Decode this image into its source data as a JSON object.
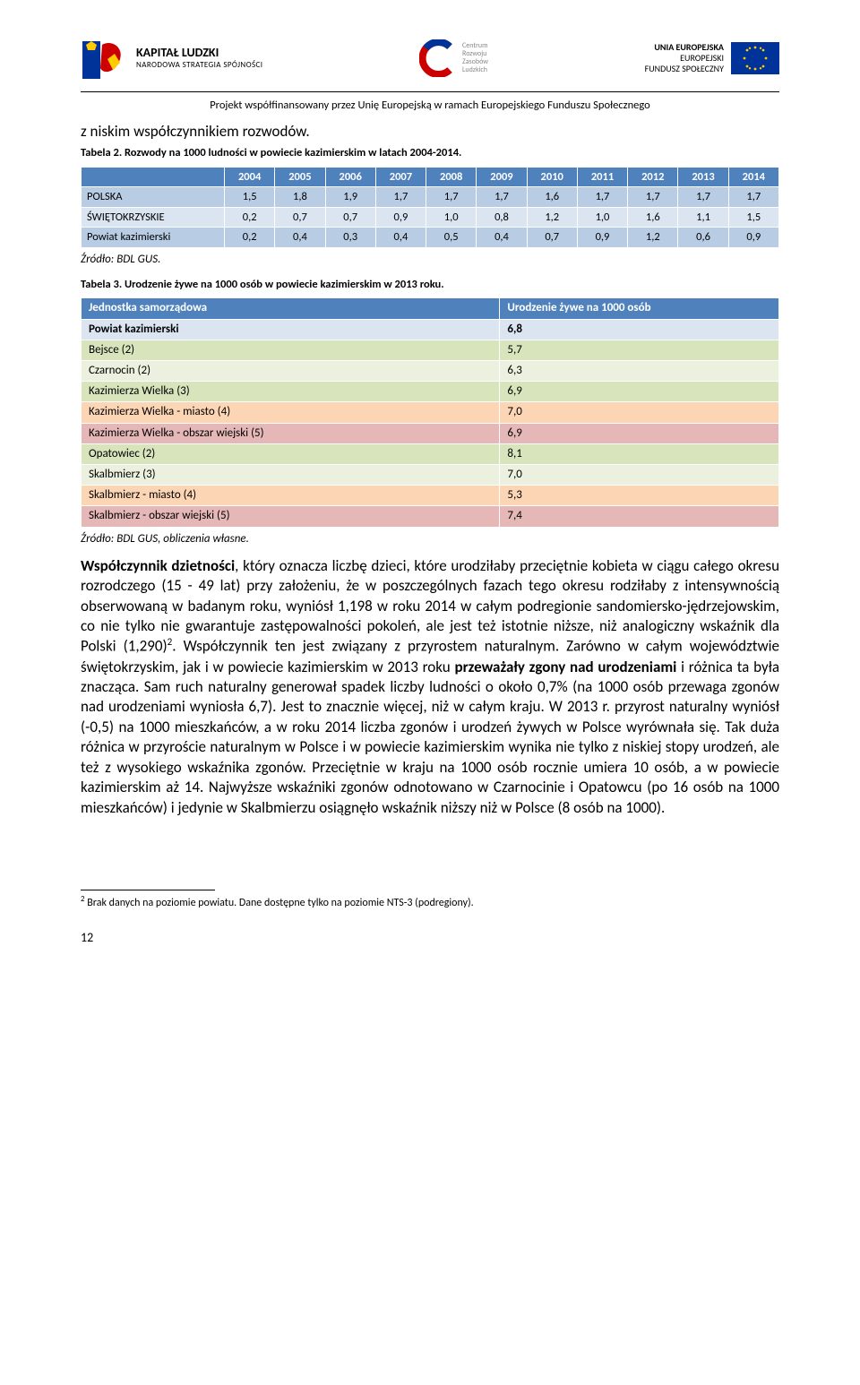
{
  "header": {
    "logo_left": {
      "line1": "KAPITAŁ LUDZKI",
      "line2": "NARODOWA STRATEGIA SPÓJNOŚCI"
    },
    "logo_center": {
      "l1": "Centrum",
      "l2": "Rozwoju",
      "l3": "Zasobów",
      "l4": "Ludzkich"
    },
    "logo_right": {
      "l1": "UNIA EUROPEJSKA",
      "l2": "EUROPEJSKI",
      "l3": "FUNDUSZ SPOŁECZNY"
    },
    "subtitle": "Projekt współfinansowany przez Unię Europejską w ramach Europejskiego Funduszu Społecznego"
  },
  "intro_para": "z niskim współczynnikiem rozwodów.",
  "table1": {
    "caption": "Tabela 2. Rozwody na 1000 ludności w powiecie kazimierskim w latach 2004-2014.",
    "header_blank": "",
    "years": [
      "2004",
      "2005",
      "2006",
      "2007",
      "2008",
      "2009",
      "2010",
      "2011",
      "2012",
      "2013",
      "2014"
    ],
    "rows": [
      {
        "label": "POLSKA",
        "values": [
          "1,5",
          "1,8",
          "1,9",
          "1,7",
          "1,7",
          "1,7",
          "1,6",
          "1,7",
          "1,7",
          "1,7",
          "1,7"
        ],
        "bg": "#b8cce4"
      },
      {
        "label": "ŚWIĘTOKRZYSKIE",
        "values": [
          "0,2",
          "0,7",
          "0,7",
          "0,9",
          "1,0",
          "0,8",
          "1,2",
          "1,0",
          "1,6",
          "1,1",
          "1,5"
        ],
        "bg": "#dbe5f1"
      },
      {
        "label": "Powiat kazimierski",
        "values": [
          "0,2",
          "0,4",
          "0,3",
          "0,4",
          "0,5",
          "0,4",
          "0,7",
          "0,9",
          "1,2",
          "0,6",
          "0,9"
        ],
        "bg": "#b8cce4"
      }
    ],
    "source": "Źródło: BDL GUS."
  },
  "table2": {
    "caption": "Tabela 3. Urodzenie żywe na 1000 osób w powiecie kazimierskim w 2013 roku.",
    "head_col1": "Jednostka samorządowa",
    "head_col2": "Urodzenie żywe na 1000 osób",
    "rows": [
      {
        "label": "Powiat kazimierski",
        "value": "6,8",
        "bg": "#dbe5f1",
        "bold": true
      },
      {
        "label": "Bejsce (2)",
        "value": "5,7",
        "bg": "#d7e4bc"
      },
      {
        "label": "Czarnocin (2)",
        "value": "6,3",
        "bg": "#ebf1de"
      },
      {
        "label": "Kazimierza Wielka (3)",
        "value": "6,9",
        "bg": "#d7e4bc"
      },
      {
        "label": "Kazimierza Wielka - miasto (4)",
        "value": "7,0",
        "bg": "#fcd5b4"
      },
      {
        "label": "Kazimierza Wielka - obszar wiejski (5)",
        "value": "6,9",
        "bg": "#e5b8b7"
      },
      {
        "label": "Opatowiec (2)",
        "value": "8,1",
        "bg": "#d7e4bc"
      },
      {
        "label": "Skalbmierz (3)",
        "value": "7,0",
        "bg": "#ebf1de"
      },
      {
        "label": "Skalbmierz - miasto (4)",
        "value": "5,3",
        "bg": "#fcd5b4"
      },
      {
        "label": "Skalbmierz - obszar wiejski (5)",
        "value": "7,4",
        "bg": "#e5b8b7"
      }
    ],
    "source": "Źródło: BDL GUS, obliczenia własne."
  },
  "body": {
    "strong1": "Współczynnik dzietności",
    "part1": ", który oznacza liczbę dzieci, które urodziłaby przeciętnie kobieta w ciągu całego okresu rozrodczego (15 - 49 lat) przy założeniu, że w poszczególnych fazach tego okresu rodziłaby z intensywnością obserwowaną w badanym roku, wyniósł 1,198 w roku 2014 w całym podregionie sandomiersko-jędrzejowskim, co nie tylko nie gwarantuje zastępowalności pokoleń, ale jest też istotnie niższe, niż analogiczny wskaźnik dla Polski (1,290)",
    "fn_ref": "2",
    "part2": ". Współczynnik ten jest związany z przyrostem naturalnym. Zarówno w całym województwie świętokrzyskim, jak i w powiecie kazimierskim w 2013 roku ",
    "strong2": "przeważały zgony nad urodzeniami",
    "part3": " i różnica ta była znacząca. Sam ruch naturalny generował spadek liczby ludności o około 0,7% (na 1000 osób przewaga zgonów nad urodzeniami wyniosła 6,7). Jest to znacznie więcej, niż w całym kraju. W 2013 r. przyrost naturalny wyniósł (-0,5) na 1000 mieszkańców, a w roku 2014 liczba zgonów i urodzeń żywych w Polsce wyrównała się. Tak duża różnica w przyroście naturalnym w Polsce i w powiecie kazimierskim wynika nie tylko z niskiej stopy urodzeń, ale też z wysokiego wskaźnika zgonów. Przeciętnie w kraju na 1000 osób rocznie umiera 10 osób, a w powiecie kazimierskim aż 14. Najwyższe wskaźniki zgonów odnotowano w Czarnocinie i Opatowcu (po 16 osób na 1000 mieszkańców) i jedynie w Skalbmierzu osiągnęło wskaźnik niższy niż w Polsce (8 osób na 1000)."
  },
  "footnote": {
    "num": "2",
    "text": " Brak danych na poziomie powiatu. Dane dostępne tylko na poziomie NTS-3 (podregiony)."
  },
  "page_number": "12"
}
